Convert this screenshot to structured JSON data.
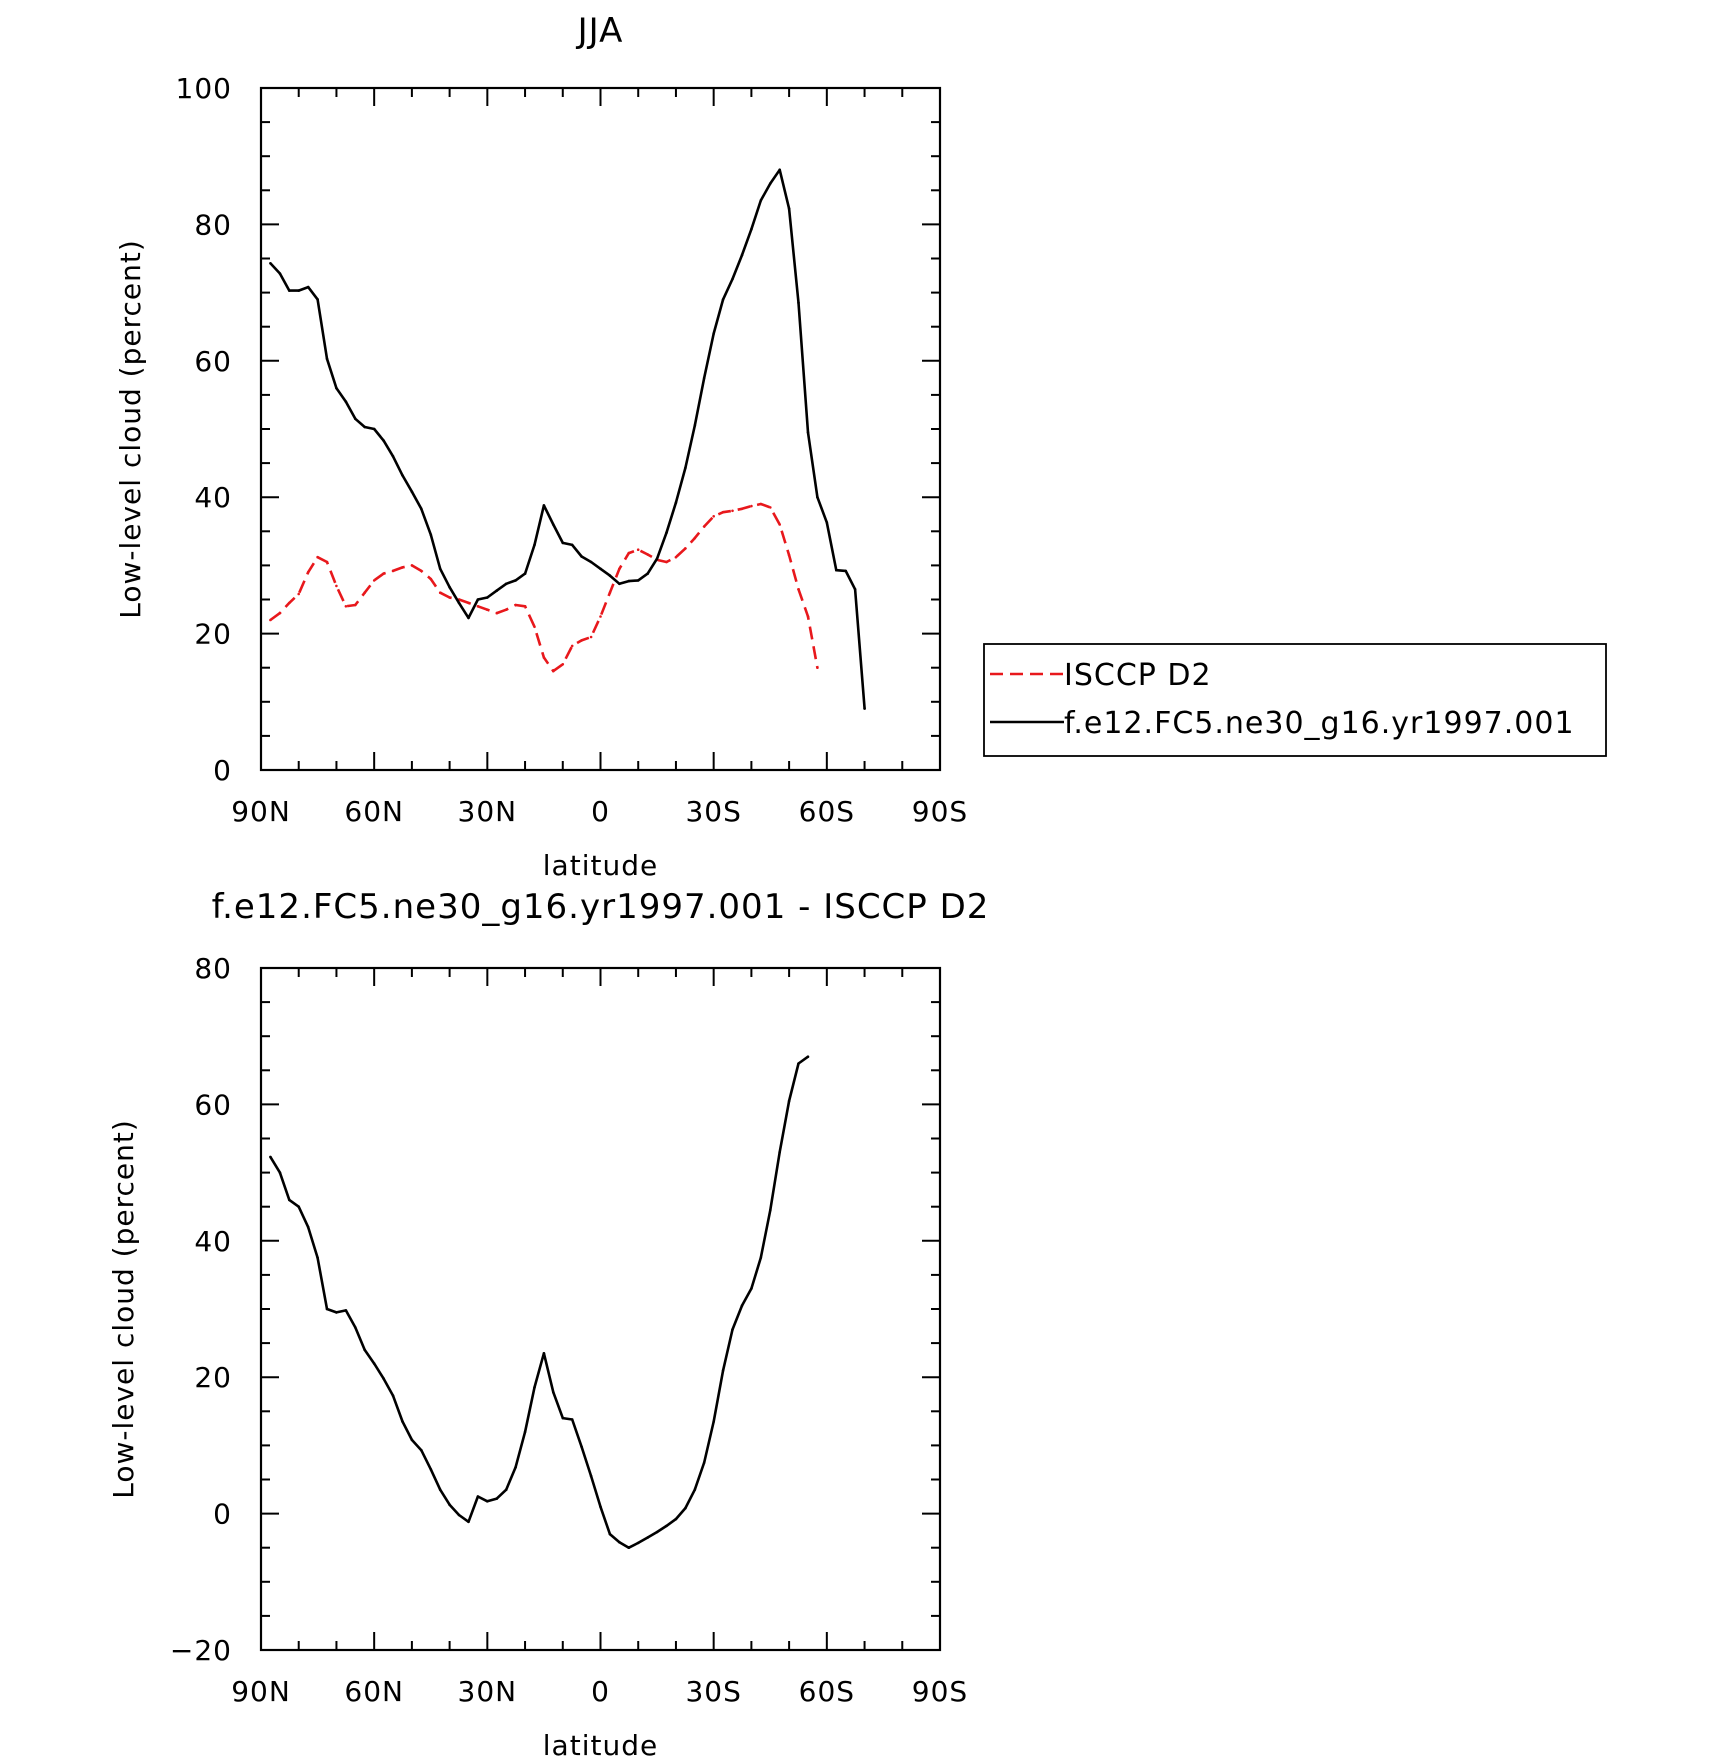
{
  "chart_data": [
    {
      "type": "line",
      "title": "JJA",
      "xlabel": "latitude",
      "ylabel": "Low-level cloud (percent)",
      "xlim": [
        90,
        -90
      ],
      "ylim": [
        0,
        100
      ],
      "x_ticks": [
        {
          "value": 90,
          "label": "90N"
        },
        {
          "value": 60,
          "label": "60N"
        },
        {
          "value": 30,
          "label": "30N"
        },
        {
          "value": 0,
          "label": "0"
        },
        {
          "value": -30,
          "label": "30S"
        },
        {
          "value": -60,
          "label": "60S"
        },
        {
          "value": -90,
          "label": "90S"
        }
      ],
      "y_ticks": [
        0,
        20,
        40,
        60,
        80,
        100
      ],
      "grid": false,
      "legend_position": "right",
      "series": [
        {
          "name": "ISCCP D2",
          "color": "#e8181c",
          "dash": "dashed",
          "points": [
            [
              87.5,
              22
            ],
            [
              85,
              23
            ],
            [
              82.5,
              24.5
            ],
            [
              80,
              25.8
            ],
            [
              77.5,
              29
            ],
            [
              75,
              31.2
            ],
            [
              72.5,
              30.5
            ],
            [
              70,
              27
            ],
            [
              67.5,
              24
            ],
            [
              65,
              24.2
            ],
            [
              62.5,
              26
            ],
            [
              60,
              27.8
            ],
            [
              57.5,
              28.8
            ],
            [
              55,
              29.2
            ],
            [
              52.5,
              29.7
            ],
            [
              50,
              30
            ],
            [
              47.5,
              29.2
            ],
            [
              45,
              28
            ],
            [
              42.5,
              26
            ],
            [
              40,
              25.3
            ],
            [
              37.5,
              25
            ],
            [
              35,
              24.5
            ],
            [
              32.5,
              24
            ],
            [
              30,
              23.5
            ],
            [
              27.5,
              23
            ],
            [
              25,
              23.5
            ],
            [
              22.5,
              24.2
            ],
            [
              20,
              24
            ],
            [
              17.5,
              21
            ],
            [
              15,
              16.5
            ],
            [
              12.5,
              14.5
            ],
            [
              10,
              15.5
            ],
            [
              7.5,
              18.2
            ],
            [
              5,
              19
            ],
            [
              2.5,
              19.5
            ],
            [
              0,
              22.5
            ],
            [
              -2.5,
              26
            ],
            [
              -5,
              29.5
            ],
            [
              -7.5,
              31.8
            ],
            [
              -10,
              32.3
            ],
            [
              -12.5,
              31.6
            ],
            [
              -15,
              30.8
            ],
            [
              -17.5,
              30.5
            ],
            [
              -20,
              31.2
            ],
            [
              -22.5,
              32.5
            ],
            [
              -25,
              34
            ],
            [
              -27.5,
              35.7
            ],
            [
              -30,
              37.2
            ],
            [
              -32.5,
              37.8
            ],
            [
              -35,
              38
            ],
            [
              -37.5,
              38.3
            ],
            [
              -40,
              38.7
            ],
            [
              -42.5,
              39
            ],
            [
              -45,
              38.5
            ],
            [
              -47.5,
              36
            ],
            [
              -50,
              31.5
            ],
            [
              -52.5,
              26.5
            ],
            [
              -55,
              22.5
            ],
            [
              -57.5,
              15
            ]
          ]
        },
        {
          "name": "f.e12.FC5.ne30_g16.yr1997.001",
          "color": "#000000",
          "dash": "solid",
          "points": [
            [
              87.5,
              74.3
            ],
            [
              85,
              72.8
            ],
            [
              82.5,
              70.3
            ],
            [
              80,
              70.3
            ],
            [
              77.5,
              70.8
            ],
            [
              75,
              69
            ],
            [
              72.5,
              60.3
            ],
            [
              70,
              56
            ],
            [
              67.5,
              54
            ],
            [
              65,
              51.5
            ],
            [
              62.5,
              50.3
            ],
            [
              60,
              50
            ],
            [
              57.5,
              48.3
            ],
            [
              55,
              46
            ],
            [
              52.5,
              43.2
            ],
            [
              50,
              40.8
            ],
            [
              47.5,
              38.3
            ],
            [
              45,
              34.5
            ],
            [
              42.5,
              29.5
            ],
            [
              40,
              26.8
            ],
            [
              37.5,
              24.5
            ],
            [
              35,
              22.3
            ],
            [
              32.5,
              25
            ],
            [
              30,
              25.3
            ],
            [
              27.5,
              26.3
            ],
            [
              25,
              27.3
            ],
            [
              22.5,
              27.8
            ],
            [
              20,
              28.8
            ],
            [
              17.5,
              33
            ],
            [
              15,
              38.8
            ],
            [
              12.5,
              36
            ],
            [
              10,
              33.3
            ],
            [
              7.5,
              33
            ],
            [
              5,
              31.3
            ],
            [
              2.5,
              30.5
            ],
            [
              0,
              29.5
            ],
            [
              -2.5,
              28.5
            ],
            [
              -5,
              27.3
            ],
            [
              -7.5,
              27.7
            ],
            [
              -10,
              27.8
            ],
            [
              -12.5,
              28.8
            ],
            [
              -15,
              31
            ],
            [
              -17.5,
              34.8
            ],
            [
              -20,
              39.2
            ],
            [
              -22.5,
              44.3
            ],
            [
              -25,
              50.5
            ],
            [
              -27.5,
              57.5
            ],
            [
              -30,
              64
            ],
            [
              -32.5,
              69
            ],
            [
              -35,
              72
            ],
            [
              -37.5,
              75.5
            ],
            [
              -40,
              79.3
            ],
            [
              -42.5,
              83.5
            ],
            [
              -45,
              86
            ],
            [
              -47.5,
              88
            ],
            [
              -50,
              82.3
            ],
            [
              -52.5,
              68.5
            ],
            [
              -55,
              49.5
            ],
            [
              -57.5,
              40
            ],
            [
              -60,
              36.3
            ],
            [
              -62.5,
              29.3
            ],
            [
              -65,
              29.2
            ],
            [
              -67.5,
              26.5
            ],
            [
              -70,
              9
            ]
          ]
        }
      ]
    },
    {
      "type": "line",
      "title": "f.e12.FC5.ne30_g16.yr1997.001 - ISCCP D2",
      "xlabel": "latitude",
      "ylabel": "Low-level cloud (percent)",
      "xlim": [
        90,
        -90
      ],
      "ylim": [
        -20,
        80
      ],
      "x_ticks": [
        {
          "value": 90,
          "label": "90N"
        },
        {
          "value": 60,
          "label": "60N"
        },
        {
          "value": 30,
          "label": "30N"
        },
        {
          "value": 0,
          "label": "0"
        },
        {
          "value": -30,
          "label": "30S"
        },
        {
          "value": -60,
          "label": "60S"
        },
        {
          "value": -90,
          "label": "90S"
        }
      ],
      "y_ticks": [
        -20,
        0,
        20,
        40,
        60,
        80
      ],
      "grid": false,
      "series": [
        {
          "color": "#000000",
          "dash": "solid",
          "points": [
            [
              87.5,
              52.3
            ],
            [
              85,
              50
            ],
            [
              82.5,
              46
            ],
            [
              80,
              45
            ],
            [
              77.5,
              42
            ],
            [
              75,
              37.5
            ],
            [
              72.5,
              30
            ],
            [
              70,
              29.5
            ],
            [
              67.5,
              29.8
            ],
            [
              65,
              27.3
            ],
            [
              62.5,
              24
            ],
            [
              60,
              22
            ],
            [
              57.5,
              19.8
            ],
            [
              55,
              17.3
            ],
            [
              52.5,
              13.5
            ],
            [
              50,
              10.8
            ],
            [
              47.5,
              9.3
            ],
            [
              45,
              6.5
            ],
            [
              42.5,
              3.5
            ],
            [
              40,
              1.3
            ],
            [
              37.5,
              -0.2
            ],
            [
              35,
              -1.2
            ],
            [
              32.5,
              2.5
            ],
            [
              30,
              1.8
            ],
            [
              27.5,
              2.2
            ],
            [
              25,
              3.5
            ],
            [
              22.5,
              6.8
            ],
            [
              20,
              12
            ],
            [
              17.5,
              18.5
            ],
            [
              15,
              23.5
            ],
            [
              12.5,
              17.8
            ],
            [
              10,
              14
            ],
            [
              7.5,
              13.8
            ],
            [
              5,
              9.8
            ],
            [
              2.5,
              5.5
            ],
            [
              0,
              1
            ],
            [
              -2.5,
              -3
            ],
            [
              -5,
              -4.2
            ],
            [
              -7.5,
              -5
            ],
            [
              -10,
              -4.3
            ],
            [
              -12.5,
              -3.5
            ],
            [
              -15,
              -2.7
            ],
            [
              -17.5,
              -1.8
            ],
            [
              -20,
              -0.8
            ],
            [
              -22.5,
              0.8
            ],
            [
              -25,
              3.5
            ],
            [
              -27.5,
              7.5
            ],
            [
              -30,
              13.5
            ],
            [
              -32.5,
              21
            ],
            [
              -35,
              27
            ],
            [
              -37.5,
              30.5
            ],
            [
              -40,
              33
            ],
            [
              -42.5,
              37.5
            ],
            [
              -45,
              44.5
            ],
            [
              -47.5,
              53
            ],
            [
              -50,
              60.5
            ],
            [
              -52.5,
              66
            ],
            [
              -55,
              67
            ]
          ]
        }
      ]
    }
  ]
}
